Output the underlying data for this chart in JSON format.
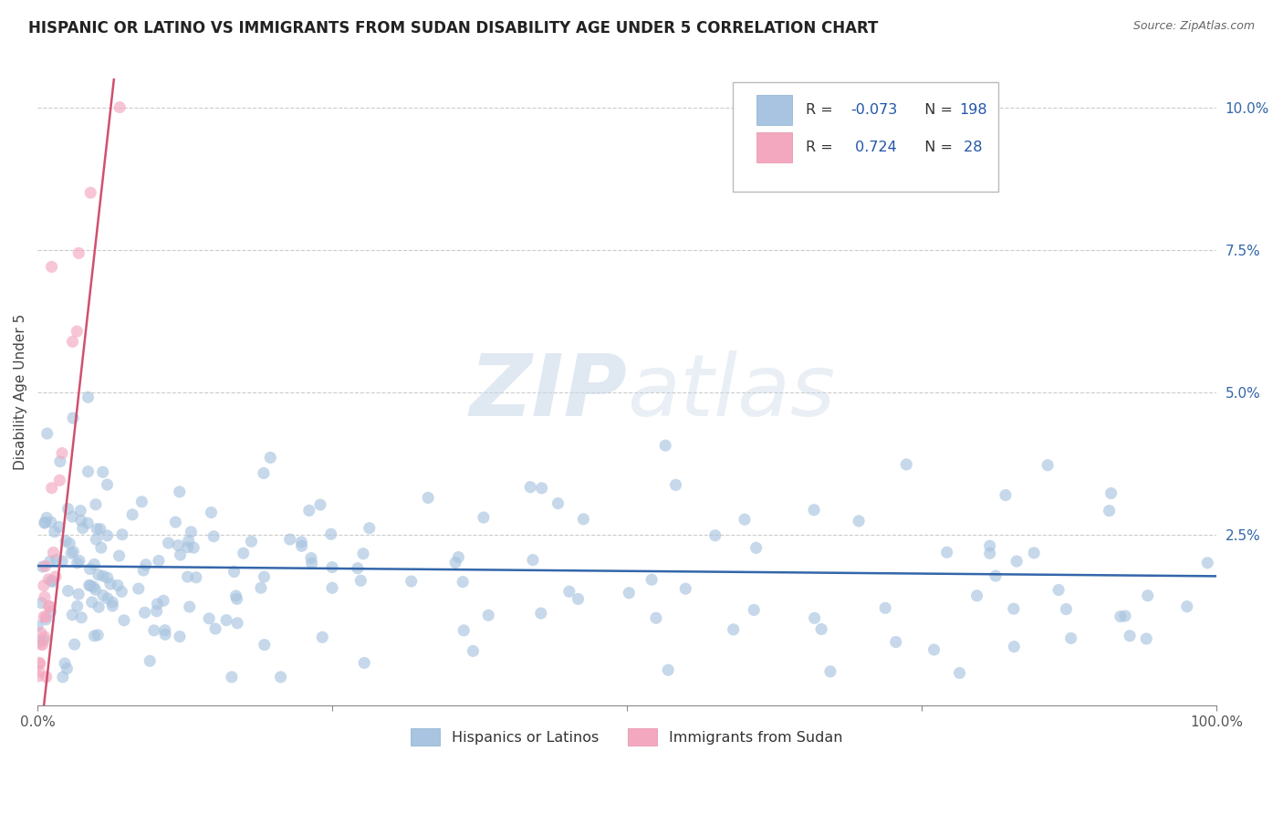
{
  "title": "HISPANIC OR LATINO VS IMMIGRANTS FROM SUDAN DISABILITY AGE UNDER 5 CORRELATION CHART",
  "source": "Source: ZipAtlas.com",
  "ylabel": "Disability Age Under 5",
  "xlim": [
    0,
    100
  ],
  "ylim": [
    -0.5,
    10.5
  ],
  "blue_R": -0.073,
  "blue_N": 198,
  "pink_R": 0.724,
  "pink_N": 28,
  "blue_color": "#a8c4e0",
  "pink_color": "#f4a8c0",
  "blue_line_color": "#3366aa",
  "pink_line_color": "#d05070",
  "watermark_zip": "ZIP",
  "watermark_atlas": "atlas",
  "background_color": "#ffffff",
  "grid_color": "#cccccc",
  "title_fontsize": 12,
  "axis_fontsize": 11,
  "tick_fontsize": 11,
  "seed": 7,
  "blue_trend_intercept": 1.95,
  "blue_trend_slope": -0.0018,
  "pink_trend_intercept": -1.5,
  "pink_trend_slope": 1.85
}
